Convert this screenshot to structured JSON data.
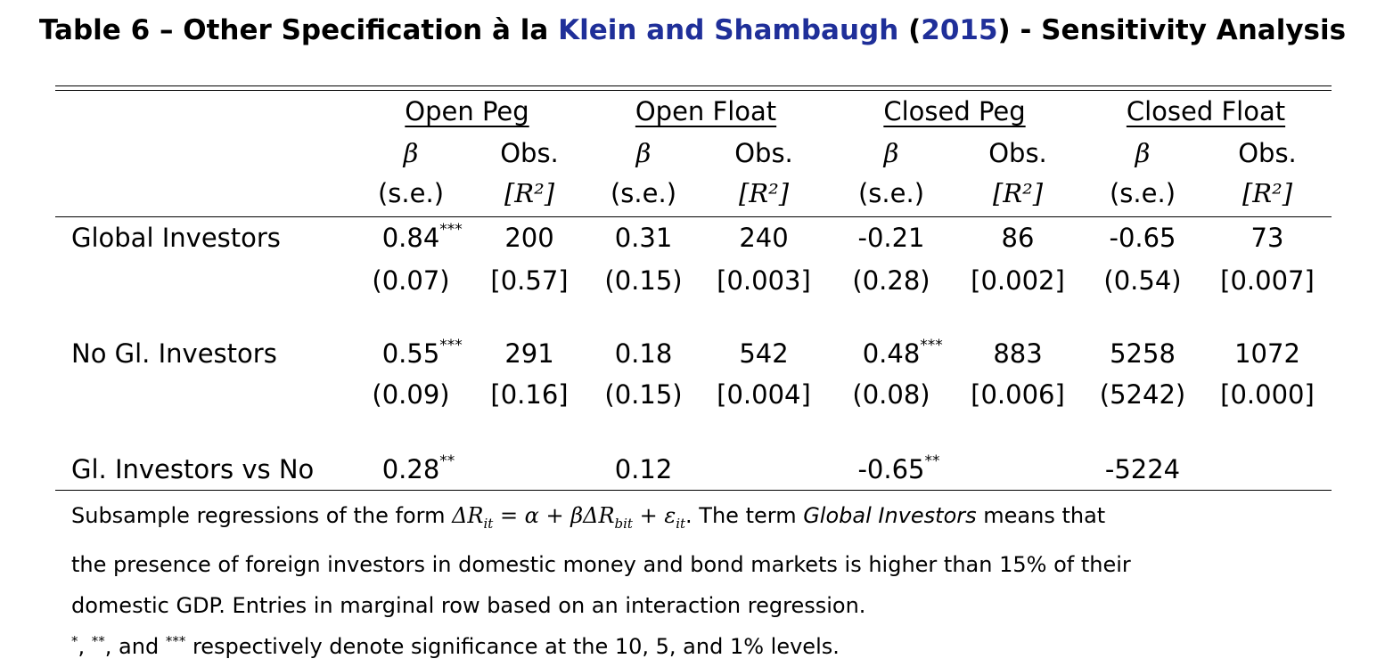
{
  "title": {
    "prefix": "Table 6 – Other Specification à la ",
    "cite_authors": "Klein and Shambaugh",
    "open_paren": "(",
    "cite_year": "2015",
    "suffix": ") - Sensitivity Analysis"
  },
  "groups": [
    "Open Peg",
    "Open Float",
    "Closed Peg",
    "Closed Float"
  ],
  "subheaders": {
    "beta": "β",
    "obs": "Obs.",
    "se": "(s.e.)",
    "r2": "[R²]"
  },
  "rows": [
    {
      "label": "Global Investors",
      "beta": [
        "0.84",
        "0.31",
        "-0.21",
        "-0.65"
      ],
      "beta_stars": [
        "***",
        "",
        "",
        ""
      ],
      "obs": [
        "200",
        "240",
        "86",
        "73"
      ],
      "se": [
        "(0.07)",
        "(0.15)",
        "(0.28)",
        "(0.54)"
      ],
      "r2": [
        "[0.57]",
        "[0.003]",
        "[0.002]",
        "[0.007]"
      ]
    },
    {
      "label": "No Gl. Investors",
      "beta": [
        "0.55",
        "0.18",
        "0.48",
        "5258"
      ],
      "beta_stars": [
        "***",
        "",
        "***",
        ""
      ],
      "obs": [
        "291",
        "542",
        "883",
        "1072"
      ],
      "se": [
        "(0.09)",
        "(0.15)",
        "(0.08)",
        "(5242)"
      ],
      "r2": [
        "[0.16]",
        "[0.004]",
        "[0.006]",
        "[0.000]"
      ]
    }
  ],
  "diff_row": {
    "label": "Gl. Investors vs No",
    "beta": [
      "0.28",
      "0.12",
      "-0.65",
      "-5224"
    ],
    "beta_stars": [
      "**",
      "",
      "**",
      ""
    ]
  },
  "notes": {
    "line1_prefix": "Subsample regressions of the form ",
    "equation": "ΔRit = α + βΔRbit + εit",
    "line1_mid": ". The term ",
    "italic_term": "Global Investors",
    "line1_suffix": " means that",
    "line2": "the presence of foreign investors in domestic money and bond markets is higher than 15% of their",
    "line3": "domestic GDP. Entries in marginal row based on an interaction regression.",
    "line4_s1": "*",
    "line4_a": ", ",
    "line4_s2": "**",
    "line4_b": ", and ",
    "line4_s3": "***",
    "line4_c": " respectively denote significance at the 10, 5, and 1% levels."
  },
  "colors": {
    "citation": "#1f2f99",
    "text": "#000000"
  }
}
